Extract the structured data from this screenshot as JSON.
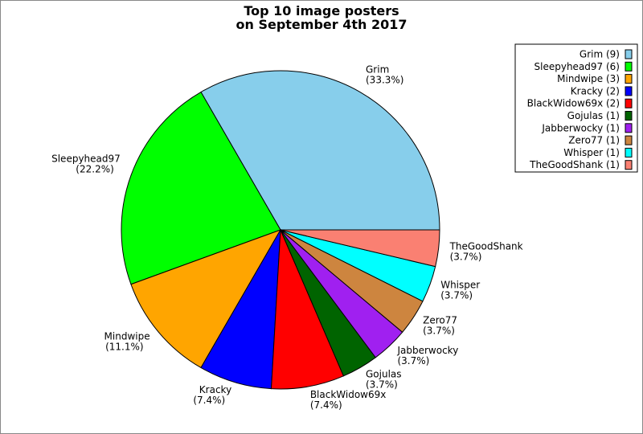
{
  "chart_data": {
    "type": "pie",
    "title": [
      "Top 10 image posters",
      "on September 4th 2017"
    ],
    "start_angle_deg": 0,
    "direction": "counterclockwise",
    "legend_position": "top-right",
    "slices": [
      {
        "name": "Grim",
        "value": 9,
        "percent": "33.3%",
        "color": "#87CEEB"
      },
      {
        "name": "Sleepyhead97",
        "value": 6,
        "percent": "22.2%",
        "color": "#00FF00"
      },
      {
        "name": "Mindwipe",
        "value": 3,
        "percent": "11.1%",
        "color": "#FFA500"
      },
      {
        "name": "Kracky",
        "value": 2,
        "percent": "7.4%",
        "color": "#0000FF"
      },
      {
        "name": "BlackWidow69x",
        "value": 2,
        "percent": "7.4%",
        "color": "#FF0000"
      },
      {
        "name": "Gojulas",
        "value": 1,
        "percent": "3.7%",
        "color": "#006400"
      },
      {
        "name": "Jabberwocky",
        "value": 1,
        "percent": "3.7%",
        "color": "#A020F0"
      },
      {
        "name": "Zero77",
        "value": 1,
        "percent": "3.7%",
        "color": "#CD853F"
      },
      {
        "name": "Whisper",
        "value": 1,
        "percent": "3.7%",
        "color": "#00FFFF"
      },
      {
        "name": "TheGoodShank",
        "value": 1,
        "percent": "3.7%",
        "color": "#FA8072"
      }
    ]
  }
}
